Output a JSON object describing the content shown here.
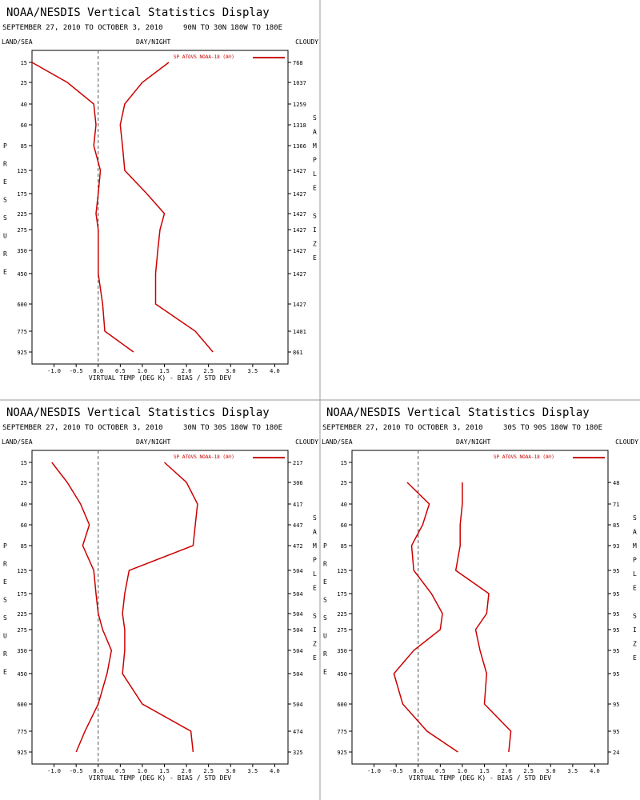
{
  "panels_layout": [
    "top-left",
    "empty",
    "bottom-left",
    "bottom-right"
  ],
  "common": {
    "title": "NOAA/NESDIS Vertical Statistics Display",
    "period": "SEPTEMBER 27, 2010 TO OCTOBER 3, 2010",
    "lon_range": "180W TO 180E",
    "left_label": "LAND/SEA",
    "center_label": "DAY/NIGHT",
    "right_label": "CLOUDY",
    "legend": "SP ATOVS NOAA-18 (A®)",
    "xlabel": "VIRTUAL TEMP (DEG K) - BIAS / STD DEV",
    "ylabel_letters": [
      "P",
      "R",
      "E",
      "S",
      "S",
      "U",
      "R",
      "E"
    ],
    "right_axis_letters": [
      "S",
      "A",
      "M",
      "P",
      "L",
      "E",
      "",
      "S",
      "I",
      "Z",
      "E"
    ],
    "x_ticks": [
      "-1.0",
      "-0.5",
      "0.0",
      "0.5",
      "1.0",
      "1.5",
      "2.0",
      "2.5",
      "3.0",
      "3.5",
      "4.0"
    ],
    "line_color": "#cc0000",
    "grid": false
  },
  "chart_data": [
    {
      "type": "line",
      "lat_range": "90N TO 30N",
      "xlim": [
        -1.5,
        4.3
      ],
      "pressure_levels": [
        15,
        25,
        40,
        60,
        85,
        125,
        175,
        225,
        275,
        350,
        450,
        600,
        775,
        925
      ],
      "sample_size": [
        "768",
        "1037",
        "1259",
        "1318",
        "1366",
        "1427",
        "1427",
        "1427",
        "1427",
        "1427",
        "1427",
        "1427",
        "1401",
        "861"
      ],
      "series": [
        {
          "values": [
            -1.5,
            -0.7,
            -0.1,
            -0.05,
            -0.1,
            0.05,
            0.0,
            -0.05,
            0.0,
            0.0,
            0.0,
            0.1,
            0.15,
            0.8
          ]
        },
        {
          "values": [
            1.6,
            1.0,
            0.6,
            0.5,
            0.55,
            0.6,
            1.1,
            1.5,
            1.4,
            1.35,
            1.3,
            1.3,
            2.2,
            2.6
          ]
        }
      ]
    },
    {
      "type": "line",
      "lat_range": "30N TO 30S",
      "xlim": [
        -1.5,
        4.3
      ],
      "pressure_levels": [
        15,
        25,
        40,
        60,
        85,
        125,
        175,
        225,
        275,
        350,
        450,
        600,
        775,
        925
      ],
      "sample_size": [
        "217",
        "306",
        "417",
        "447",
        "472",
        "504",
        "504",
        "504",
        "504",
        "504",
        "504",
        "504",
        "474",
        "325"
      ],
      "series": [
        {
          "values": [
            -1.05,
            -0.7,
            -0.4,
            -0.2,
            -0.35,
            -0.1,
            -0.05,
            0.0,
            0.1,
            0.3,
            0.2,
            0.0,
            -0.3,
            -0.5
          ]
        },
        {
          "values": [
            1.5,
            2.0,
            2.25,
            2.2,
            2.15,
            0.7,
            0.6,
            0.55,
            0.6,
            0.6,
            0.55,
            1.0,
            2.1,
            2.15
          ]
        }
      ]
    },
    {
      "type": "line",
      "lat_range": "30S TO 90S",
      "xlim": [
        -1.5,
        4.3
      ],
      "pressure_levels": [
        15,
        25,
        40,
        60,
        85,
        125,
        175,
        225,
        275,
        350,
        450,
        600,
        775,
        925
      ],
      "sample_size": [
        "",
        "48",
        "71",
        "85",
        "93",
        "95",
        "95",
        "95",
        "95",
        "95",
        "95",
        "95",
        "95",
        "24"
      ],
      "series": [
        {
          "values": [
            null,
            -0.25,
            0.25,
            0.1,
            -0.15,
            -0.1,
            0.3,
            0.55,
            0.5,
            -0.1,
            -0.55,
            -0.35,
            0.2,
            0.9
          ]
        },
        {
          "values": [
            null,
            1.0,
            1.0,
            0.95,
            0.95,
            0.85,
            1.6,
            1.55,
            1.3,
            1.4,
            1.55,
            1.5,
            2.1,
            2.05
          ]
        }
      ]
    }
  ]
}
